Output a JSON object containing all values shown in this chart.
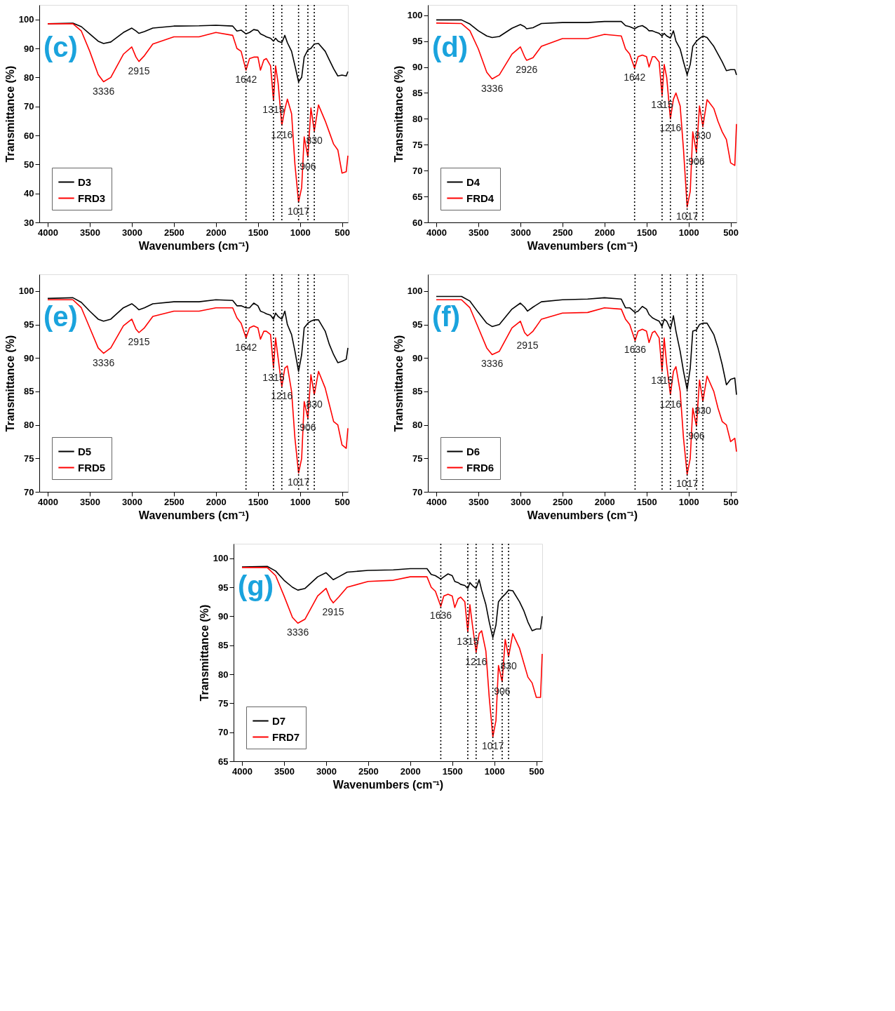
{
  "chart_data": [
    {
      "type": "line",
      "xlabel": "Wavenumbers (cm⁻¹)",
      "ylabel": "Transmittance (%)",
      "legend": "bottom left",
      "xlim": [
        4100,
        430
      ],
      "xticks": [
        4000,
        3500,
        3000,
        2500,
        2000,
        1500,
        1000,
        500
      ],
      "ylim": [
        30,
        105
      ],
      "yticks": [
        30,
        40,
        50,
        60,
        70,
        80,
        90,
        100
      ],
      "x": [
        4000,
        3700,
        3600,
        3500,
        3400,
        3336,
        3250,
        3100,
        3000,
        2950,
        2915,
        2850,
        2750,
        2500,
        2200,
        2000,
        1800,
        1750,
        1700,
        1642,
        1600,
        1550,
        1500,
        1470,
        1430,
        1400,
        1350,
        1315,
        1290,
        1260,
        1216,
        1180,
        1150,
        1100,
        1060,
        1017,
        980,
        950,
        906,
        870,
        830,
        780,
        700,
        650,
        600,
        550,
        500,
        450,
        430
      ],
      "series": [
        {
          "name": "D3",
          "color": "#000000",
          "values": [
            98.5,
            98.7,
            97.5,
            95,
            92.5,
            91.7,
            92.2,
            95.5,
            97,
            96,
            95.2,
            95.8,
            97,
            97.7,
            97.8,
            98,
            97.7,
            96,
            96.3,
            95,
            95.5,
            96.5,
            96.2,
            95,
            94.5,
            94,
            93.5,
            92.5,
            93.5,
            92.5,
            92,
            94.5,
            92,
            89,
            84,
            78.5,
            80,
            87,
            89.5,
            90,
            91.5,
            91.7,
            89,
            86,
            83,
            80.5,
            80.8,
            80.5,
            82
          ]
        },
        {
          "name": "FRD3",
          "color": "#ff0000",
          "values": [
            98.5,
            98.5,
            96,
            89,
            81,
            78.5,
            80,
            88,
            90.5,
            87,
            85.5,
            87.5,
            91.5,
            94,
            94,
            95.5,
            94.5,
            90,
            89,
            82.5,
            86.5,
            87,
            87,
            82.5,
            86,
            86.5,
            84,
            72,
            84,
            78,
            63.5,
            69,
            72.5,
            67.5,
            50,
            37,
            42,
            59.5,
            52.5,
            69.5,
            61.5,
            70.5,
            65,
            61,
            57,
            55,
            47,
            47.5,
            53
          ]
        }
      ],
      "ref_lines": [
        {
          "axis": "x",
          "value": 1642,
          "line_style": "dotted"
        },
        {
          "axis": "x",
          "value": 1315,
          "line_style": "dotted"
        },
        {
          "axis": "x",
          "value": 1216,
          "line_style": "dotted"
        },
        {
          "axis": "x",
          "value": 1017,
          "line_style": "dotted"
        },
        {
          "axis": "x",
          "value": 906,
          "line_style": "dotted"
        },
        {
          "axis": "x",
          "value": 830,
          "line_style": "dotted"
        }
      ],
      "annotations": [
        "(c)",
        {
          "text": "3336",
          "x": 3336,
          "y": 78.5
        },
        {
          "text": "2915",
          "x": 2915,
          "y": 85.5
        },
        {
          "text": "1642",
          "x": 1642,
          "y": 82.5
        },
        {
          "text": "1315",
          "x": 1315,
          "y": 72
        },
        {
          "text": "1216",
          "x": 1216,
          "y": 63.5
        },
        {
          "text": "1017",
          "x": 1017,
          "y": 37
        },
        {
          "text": "906",
          "x": 906,
          "y": 52.5
        },
        {
          "text": "830",
          "x": 830,
          "y": 61.5
        }
      ]
    },
    {
      "type": "line",
      "xlabel": "Wavenumbers (cm⁻¹)",
      "ylabel": "Transmittance (%)",
      "legend": "bottom left",
      "xlim": [
        4100,
        430
      ],
      "xticks": [
        4000,
        3500,
        3000,
        2500,
        2000,
        1500,
        1000,
        500
      ],
      "ylim": [
        60,
        102
      ],
      "yticks": [
        60,
        65,
        70,
        75,
        80,
        85,
        90,
        95,
        100
      ],
      "x": [
        4000,
        3700,
        3600,
        3500,
        3400,
        3336,
        3250,
        3100,
        3000,
        2950,
        2926,
        2850,
        2750,
        2500,
        2200,
        2000,
        1800,
        1750,
        1700,
        1642,
        1600,
        1550,
        1500,
        1470,
        1430,
        1400,
        1350,
        1315,
        1290,
        1260,
        1216,
        1180,
        1150,
        1100,
        1060,
        1017,
        980,
        950,
        906,
        870,
        830,
        780,
        700,
        650,
        600,
        550,
        500,
        450,
        430
      ],
      "series": [
        {
          "name": "D4",
          "color": "#000000",
          "values": [
            99.1,
            99.1,
            98.3,
            97,
            96,
            95.7,
            95.9,
            97.5,
            98.2,
            97.8,
            97.4,
            97.6,
            98.4,
            98.6,
            98.6,
            98.8,
            98.8,
            98,
            97.8,
            97.4,
            97.8,
            98,
            97.5,
            97,
            97,
            96.8,
            96.5,
            96,
            96.5,
            96,
            95.6,
            97,
            95,
            93.5,
            91,
            88.5,
            90.5,
            94,
            95,
            95.5,
            96,
            95.7,
            94,
            92.5,
            91,
            89.3,
            89.5,
            89.5,
            88.5
          ]
        },
        {
          "name": "FRD4",
          "color": "#ff0000",
          "values": [
            98.5,
            98.4,
            97,
            93.5,
            89,
            87.7,
            88.5,
            92.5,
            93.9,
            92,
            91.3,
            91.8,
            94,
            95.5,
            95.5,
            96.3,
            96,
            93.5,
            92.5,
            89.8,
            92,
            92.3,
            92,
            90,
            92,
            92,
            91,
            84.5,
            90.5,
            88,
            80,
            83.8,
            85,
            82.5,
            74,
            63,
            66,
            77.5,
            73.5,
            82.5,
            78.5,
            83.7,
            82,
            79.5,
            77.5,
            76,
            71.5,
            71,
            79
          ]
        }
      ],
      "ref_lines": [
        {
          "axis": "x",
          "value": 1642,
          "line_style": "dotted"
        },
        {
          "axis": "x",
          "value": 1315,
          "line_style": "dotted"
        },
        {
          "axis": "x",
          "value": 1216,
          "line_style": "dotted"
        },
        {
          "axis": "x",
          "value": 1017,
          "line_style": "dotted"
        },
        {
          "axis": "x",
          "value": 906,
          "line_style": "dotted"
        },
        {
          "axis": "x",
          "value": 830,
          "line_style": "dotted"
        }
      ],
      "annotations": [
        "(d)",
        {
          "text": "3336",
          "x": 3336,
          "y": 87.7
        },
        {
          "text": "2926",
          "x": 2926,
          "y": 91.3
        },
        {
          "text": "1642",
          "x": 1642,
          "y": 89.8
        },
        {
          "text": "1315",
          "x": 1315,
          "y": 84.5
        },
        {
          "text": "1216",
          "x": 1216,
          "y": 80
        },
        {
          "text": "1017",
          "x": 1017,
          "y": 63
        },
        {
          "text": "906",
          "x": 906,
          "y": 73.5
        },
        {
          "text": "830",
          "x": 830,
          "y": 78.5
        }
      ]
    },
    {
      "type": "line",
      "xlabel": "Wavenumbers (cm⁻¹)",
      "ylabel": "Transmittance (%)",
      "legend": "bottom left",
      "xlim": [
        4100,
        430
      ],
      "xticks": [
        4000,
        3500,
        3000,
        2500,
        2000,
        1500,
        1000,
        500
      ],
      "ylim": [
        70,
        102.5
      ],
      "yticks": [
        70,
        75,
        80,
        85,
        90,
        95,
        100
      ],
      "x": [
        4000,
        3700,
        3600,
        3500,
        3400,
        3336,
        3250,
        3100,
        3000,
        2950,
        2915,
        2850,
        2750,
        2500,
        2200,
        2000,
        1800,
        1750,
        1700,
        1642,
        1600,
        1550,
        1500,
        1470,
        1430,
        1400,
        1350,
        1315,
        1290,
        1260,
        1216,
        1180,
        1150,
        1100,
        1060,
        1017,
        980,
        950,
        906,
        870,
        830,
        780,
        700,
        650,
        600,
        550,
        500,
        450,
        430
      ],
      "series": [
        {
          "name": "D5",
          "color": "#000000",
          "values": [
            98.9,
            99,
            98.3,
            97,
            95.8,
            95.5,
            95.8,
            97.5,
            98.1,
            97.6,
            97.2,
            97.5,
            98.1,
            98.4,
            98.4,
            98.7,
            98.6,
            97.8,
            97.8,
            97.5,
            97.5,
            98.2,
            97.8,
            97,
            96.8,
            96.6,
            96.4,
            95.8,
            96.7,
            96.2,
            95.8,
            97,
            95,
            93.5,
            91,
            88,
            90.5,
            94.5,
            95.2,
            95.5,
            95.7,
            95.7,
            94,
            92,
            90.5,
            89.3,
            89.5,
            89.8,
            91.5
          ]
        },
        {
          "name": "FRD5",
          "color": "#ff0000",
          "values": [
            98.7,
            98.7,
            97.5,
            94.5,
            91.5,
            90.7,
            91.5,
            94.8,
            95.8,
            94.3,
            93.8,
            94.5,
            96.2,
            97,
            97,
            97.5,
            97.5,
            96,
            95.2,
            93,
            94.5,
            94.8,
            94.5,
            92.8,
            94,
            94,
            93.5,
            88.5,
            93,
            90,
            85.7,
            88.5,
            88.8,
            85,
            78,
            72.8,
            75,
            83.5,
            81,
            87.5,
            84.5,
            88,
            85.5,
            83,
            80.5,
            80,
            77,
            76.5,
            79.5
          ]
        }
      ],
      "ref_lines": [
        {
          "axis": "x",
          "value": 1642,
          "line_style": "dotted"
        },
        {
          "axis": "x",
          "value": 1315,
          "line_style": "dotted"
        },
        {
          "axis": "x",
          "value": 1216,
          "line_style": "dotted"
        },
        {
          "axis": "x",
          "value": 1017,
          "line_style": "dotted"
        },
        {
          "axis": "x",
          "value": 906,
          "line_style": "dotted"
        },
        {
          "axis": "x",
          "value": 830,
          "line_style": "dotted"
        }
      ],
      "annotations": [
        "(e)",
        {
          "text": "3336",
          "x": 3336,
          "y": 90.7
        },
        {
          "text": "2915",
          "x": 2915,
          "y": 93.8
        },
        {
          "text": "1642",
          "x": 1642,
          "y": 93
        },
        {
          "text": "1315",
          "x": 1315,
          "y": 88.5
        },
        {
          "text": "1216",
          "x": 1216,
          "y": 85.7
        },
        {
          "text": "1017",
          "x": 1017,
          "y": 72.8
        },
        {
          "text": "906",
          "x": 906,
          "y": 81
        },
        {
          "text": "830",
          "x": 830,
          "y": 84.5
        }
      ]
    },
    {
      "type": "line",
      "xlabel": "Wavenumbers (cm⁻¹)",
      "ylabel": "Transmittance (%)",
      "legend": "bottom left",
      "xlim": [
        4100,
        430
      ],
      "xticks": [
        4000,
        3500,
        3000,
        2500,
        2000,
        1500,
        1000,
        500
      ],
      "ylim": [
        70,
        102.5
      ],
      "yticks": [
        70,
        75,
        80,
        85,
        90,
        95,
        100
      ],
      "x": [
        4000,
        3700,
        3600,
        3500,
        3400,
        3336,
        3250,
        3100,
        3000,
        2950,
        2915,
        2850,
        2750,
        2500,
        2200,
        2000,
        1800,
        1750,
        1700,
        1636,
        1600,
        1550,
        1500,
        1470,
        1430,
        1400,
        1350,
        1315,
        1290,
        1260,
        1216,
        1180,
        1150,
        1100,
        1060,
        1017,
        980,
        950,
        906,
        870,
        830,
        780,
        700,
        650,
        600,
        550,
        500,
        450,
        430
      ],
      "series": [
        {
          "name": "D6",
          "color": "#000000",
          "values": [
            99.2,
            99.2,
            98.5,
            96.8,
            95.2,
            94.7,
            95,
            97.3,
            98.2,
            97.6,
            97,
            97.6,
            98.4,
            98.7,
            98.8,
            99,
            98.8,
            97.5,
            97.5,
            96.8,
            97,
            97.7,
            97.3,
            96.5,
            96,
            95.8,
            95.5,
            94.7,
            95.8,
            95.5,
            94.3,
            96.3,
            94,
            91,
            88,
            85.3,
            88.5,
            94,
            94.2,
            95,
            95.2,
            95.2,
            93.5,
            91.5,
            89,
            86,
            86.8,
            87,
            84.5
          ]
        },
        {
          "name": "FRD6",
          "color": "#ff0000",
          "values": [
            98.7,
            98.7,
            97.5,
            94.5,
            91.5,
            90.5,
            91,
            94.5,
            95.5,
            93.8,
            93.3,
            94,
            95.8,
            96.7,
            96.8,
            97.5,
            97.3,
            95.8,
            95,
            92.6,
            94,
            94.3,
            94,
            92.3,
            93.8,
            94,
            93,
            88,
            93,
            89,
            84.5,
            88,
            88.7,
            85,
            78,
            72.6,
            75,
            82.5,
            79.8,
            86.7,
            83.5,
            87.3,
            85,
            82.5,
            80.5,
            80,
            77.5,
            78,
            76
          ]
        }
      ],
      "ref_lines": [
        {
          "axis": "x",
          "value": 1636,
          "line_style": "dotted"
        },
        {
          "axis": "x",
          "value": 1315,
          "line_style": "dotted"
        },
        {
          "axis": "x",
          "value": 1216,
          "line_style": "dotted"
        },
        {
          "axis": "x",
          "value": 1017,
          "line_style": "dotted"
        },
        {
          "axis": "x",
          "value": 906,
          "line_style": "dotted"
        },
        {
          "axis": "x",
          "value": 830,
          "line_style": "dotted"
        }
      ],
      "annotations": [
        "(f)",
        {
          "text": "3336",
          "x": 3336,
          "y": 90.5
        },
        {
          "text": "2915",
          "x": 2915,
          "y": 93.3
        },
        {
          "text": "1636",
          "x": 1636,
          "y": 92.6
        },
        {
          "text": "1315",
          "x": 1315,
          "y": 88
        },
        {
          "text": "1216",
          "x": 1216,
          "y": 84.5
        },
        {
          "text": "1017",
          "x": 1017,
          "y": 72.6
        },
        {
          "text": "906",
          "x": 906,
          "y": 79.8
        },
        {
          "text": "830",
          "x": 830,
          "y": 83.5
        }
      ]
    },
    {
      "type": "line",
      "xlabel": "Wavenumbers (cm⁻¹)",
      "ylabel": "Transmittance (%)",
      "legend": "bottom left",
      "xlim": [
        4100,
        430
      ],
      "xticks": [
        4000,
        3500,
        3000,
        2500,
        2000,
        1500,
        1000,
        500
      ],
      "ylim": [
        65,
        102.5
      ],
      "yticks": [
        65,
        70,
        75,
        80,
        85,
        90,
        95,
        100
      ],
      "x": [
        4000,
        3700,
        3600,
        3500,
        3400,
        3336,
        3250,
        3100,
        3000,
        2950,
        2915,
        2850,
        2750,
        2500,
        2200,
        2000,
        1800,
        1750,
        1700,
        1636,
        1600,
        1550,
        1500,
        1470,
        1430,
        1400,
        1350,
        1315,
        1290,
        1260,
        1216,
        1180,
        1150,
        1100,
        1060,
        1017,
        980,
        950,
        906,
        870,
        830,
        780,
        700,
        650,
        600,
        550,
        500,
        450,
        430
      ],
      "series": [
        {
          "name": "D7",
          "color": "#000000",
          "values": [
            98.5,
            98.6,
            97.8,
            96.2,
            95,
            94.5,
            94.8,
            96.8,
            97.5,
            96.8,
            96.3,
            96.8,
            97.6,
            97.9,
            98,
            98.2,
            98.2,
            97.2,
            97,
            96.4,
            96.8,
            97.3,
            97,
            96,
            95.8,
            95.5,
            95.3,
            94.8,
            95.8,
            95.3,
            94.8,
            96.3,
            94.5,
            92,
            89,
            86.3,
            88.5,
            92.5,
            93.3,
            93.8,
            94.5,
            94.4,
            92.5,
            91,
            89,
            87.5,
            87.8,
            87.8,
            90
          ]
        },
        {
          "name": "FRD7",
          "color": "#ff0000",
          "values": [
            98.4,
            98.4,
            97,
            93.5,
            89.8,
            88.8,
            89.5,
            93.5,
            94.8,
            93,
            92.3,
            93.3,
            95,
            96,
            96.2,
            96.8,
            96.8,
            95,
            94.3,
            91.7,
            93.5,
            93.8,
            93.5,
            91.5,
            93,
            93.3,
            92.5,
            87.3,
            92,
            88.5,
            83.8,
            87,
            87.5,
            84,
            76,
            69.2,
            72,
            81.5,
            78.7,
            86,
            83,
            87,
            84.5,
            82,
            79.5,
            78.5,
            76,
            76,
            83.5
          ]
        }
      ],
      "ref_lines": [
        {
          "axis": "x",
          "value": 1636,
          "line_style": "dotted"
        },
        {
          "axis": "x",
          "value": 1315,
          "line_style": "dotted"
        },
        {
          "axis": "x",
          "value": 1216,
          "line_style": "dotted"
        },
        {
          "axis": "x",
          "value": 1017,
          "line_style": "dotted"
        },
        {
          "axis": "x",
          "value": 906,
          "line_style": "dotted"
        },
        {
          "axis": "x",
          "value": 830,
          "line_style": "dotted"
        }
      ],
      "annotations": [
        "(g)",
        {
          "text": "3336",
          "x": 3336,
          "y": 88.8
        },
        {
          "text": "2915",
          "x": 2915,
          "y": 92.3
        },
        {
          "text": "1636",
          "x": 1636,
          "y": 91.7
        },
        {
          "text": "1315",
          "x": 1315,
          "y": 87.3
        },
        {
          "text": "1216",
          "x": 1216,
          "y": 83.8
        },
        {
          "text": "1017",
          "x": 1017,
          "y": 69.2
        },
        {
          "text": "906",
          "x": 906,
          "y": 78.7
        },
        {
          "text": "830",
          "x": 830,
          "y": 83
        }
      ]
    }
  ]
}
